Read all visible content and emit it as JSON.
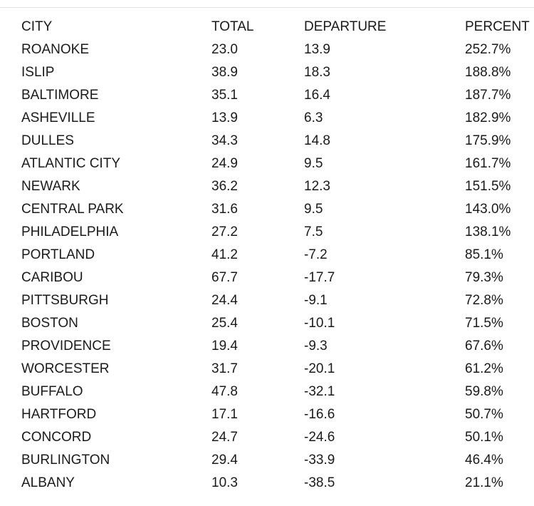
{
  "table": {
    "headers": {
      "city": "CITY",
      "total": "TOTAL",
      "departure": "DEPARTURE",
      "percent": "PERCENT"
    },
    "rows": [
      {
        "city": "ROANOKE",
        "total": "23.0",
        "departure": "13.9",
        "percent": "252.7%"
      },
      {
        "city": "ISLIP",
        "total": "38.9",
        "departure": "18.3",
        "percent": "188.8%"
      },
      {
        "city": "BALTIMORE",
        "total": "35.1",
        "departure": "16.4",
        "percent": "187.7%"
      },
      {
        "city": "ASHEVILLE",
        "total": "13.9",
        "departure": "6.3",
        "percent": "182.9%"
      },
      {
        "city": "DULLES",
        "total": "34.3",
        "departure": "14.8",
        "percent": "175.9%"
      },
      {
        "city": "ATLANTIC CITY",
        "total": "24.9",
        "departure": "9.5",
        "percent": "161.7%"
      },
      {
        "city": "NEWARK",
        "total": "36.2",
        "departure": "12.3",
        "percent": "151.5%"
      },
      {
        "city": "CENTRAL PARK",
        "total": "31.6",
        "departure": "9.5",
        "percent": "143.0%"
      },
      {
        "city": "PHILADELPHIA",
        "total": "27.2",
        "departure": "7.5",
        "percent": "138.1%"
      },
      {
        "city": "PORTLAND",
        "total": "41.2",
        "departure": "-7.2",
        "percent": "85.1%"
      },
      {
        "city": "CARIBOU",
        "total": "67.7",
        "departure": "-17.7",
        "percent": "79.3%"
      },
      {
        "city": "PITTSBURGH",
        "total": "24.4",
        "departure": "-9.1",
        "percent": "72.8%"
      },
      {
        "city": "BOSTON",
        "total": "25.4",
        "departure": "-10.1",
        "percent": "71.5%"
      },
      {
        "city": "PROVIDENCE",
        "total": "19.4",
        "departure": "-9.3",
        "percent": "67.6%"
      },
      {
        "city": "WORCESTER",
        "total": "31.7",
        "departure": "-20.1",
        "percent": "61.2%"
      },
      {
        "city": "BUFFALO",
        "total": "47.8",
        "departure": "-32.1",
        "percent": "59.8%"
      },
      {
        "city": "HARTFORD",
        "total": "17.1",
        "departure": "-16.6",
        "percent": "50.7%"
      },
      {
        "city": "CONCORD",
        "total": "24.7",
        "departure": "-24.6",
        "percent": "50.1%"
      },
      {
        "city": "BURLINGTON",
        "total": "29.4",
        "departure": "-33.9",
        "percent": "46.4%"
      },
      {
        "city": "ALBANY",
        "total": "10.3",
        "departure": "-38.5",
        "percent": "21.1%"
      }
    ]
  }
}
